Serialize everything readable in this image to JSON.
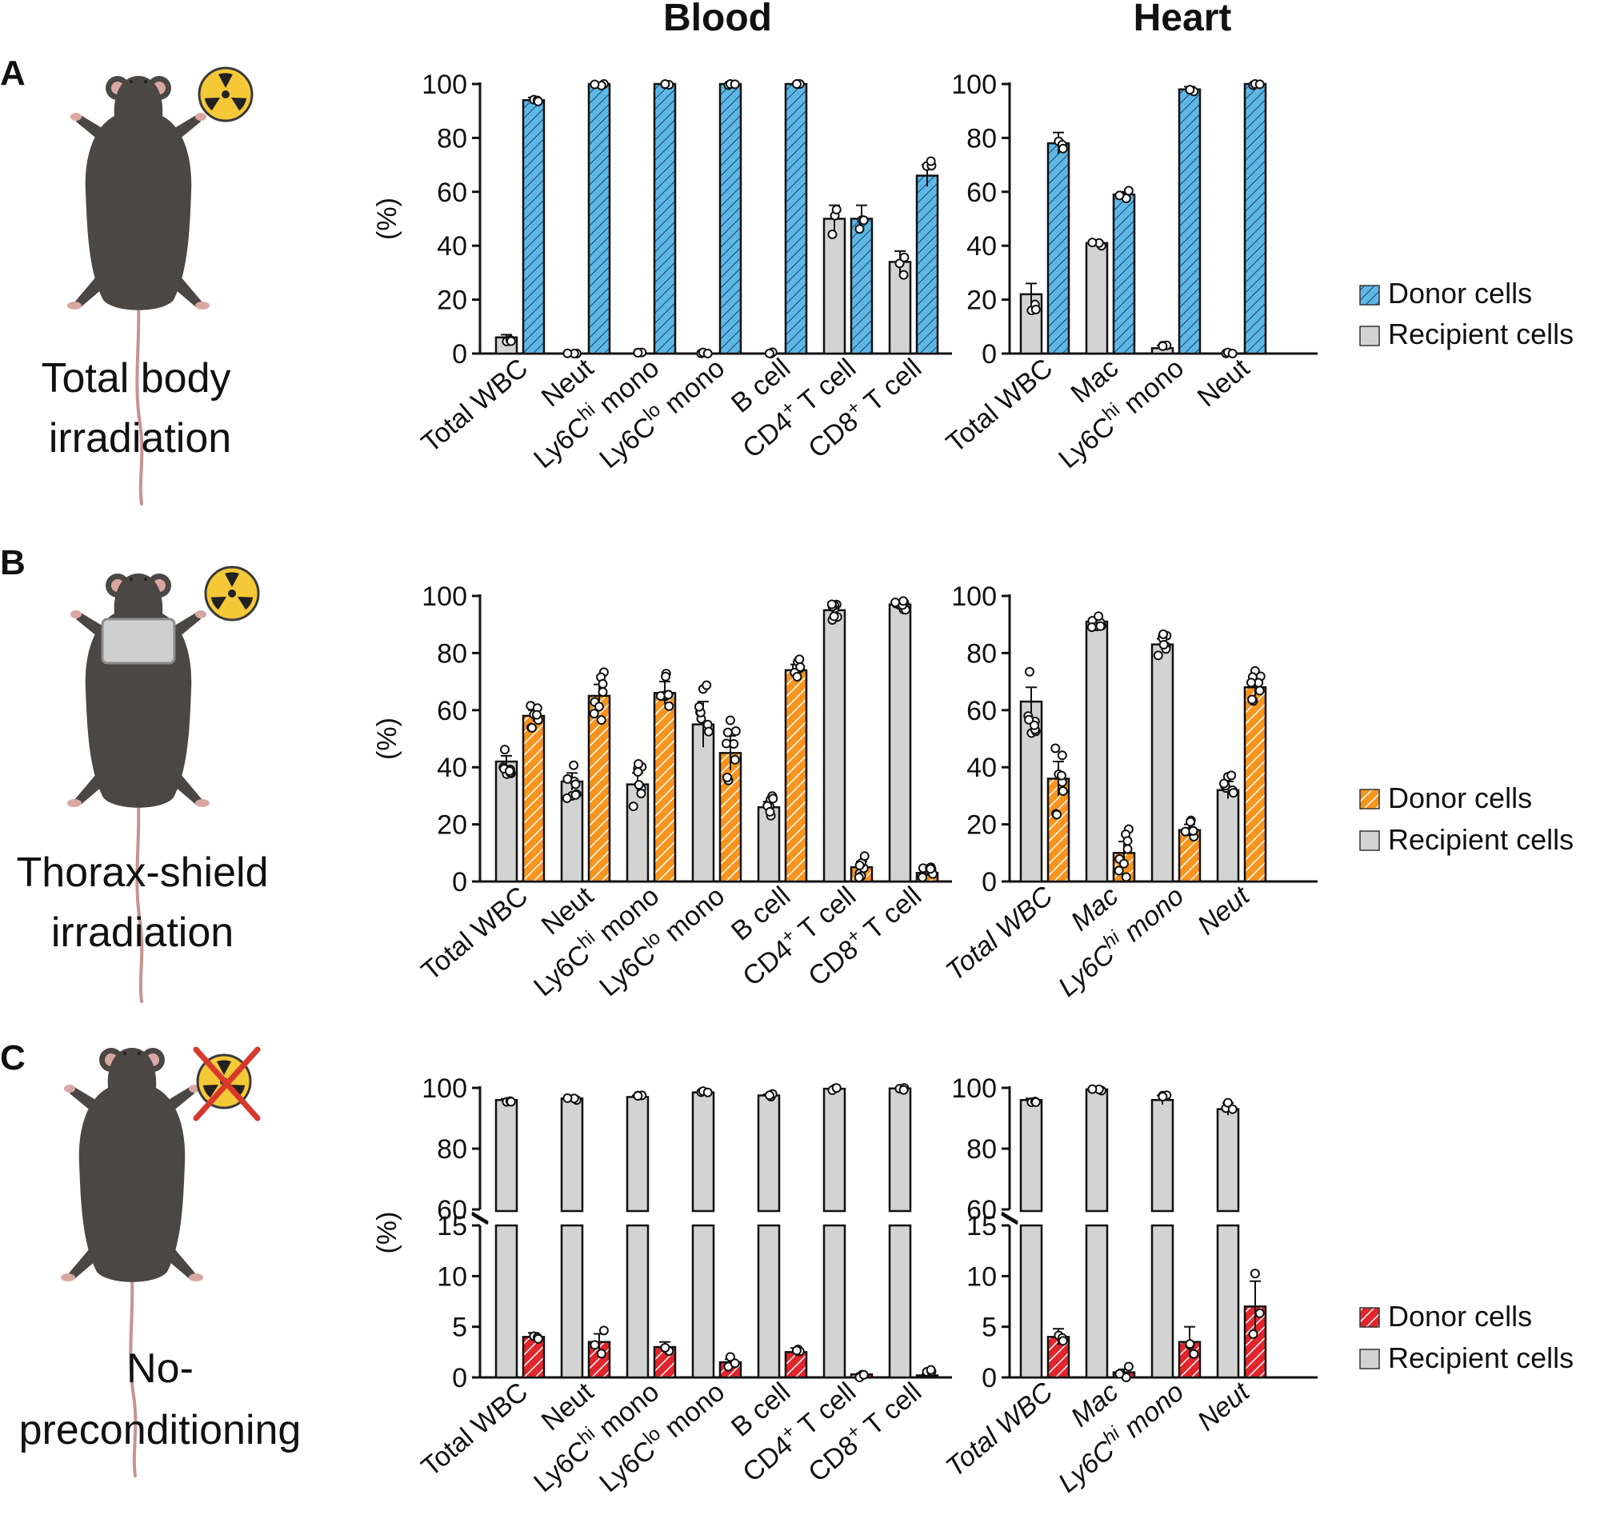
{
  "column_titles": {
    "blood": "Blood",
    "heart": "Heart"
  },
  "colors": {
    "donor_blue": "#5fb7e6",
    "donor_orange": "#f7941d",
    "donor_red": "#e0252c",
    "recipient_gray": "#d3d3d3",
    "axis": "#111111",
    "radiation_yellow": "#f5c838",
    "cross_red": "#d9382c"
  },
  "panels": [
    {
      "letter": "A",
      "caption_lines": [
        "Total body",
        "irradiation"
      ],
      "icon": "radiation-icon",
      "shielded": false,
      "legend": {
        "donor": "Donor cells",
        "recipient": "Recipient cells",
        "donor_color_key": "donor_blue"
      }
    },
    {
      "letter": "B",
      "caption_lines": [
        "Thorax-shield",
        "irradiation"
      ],
      "icon": "radiation-icon",
      "shielded": true,
      "legend": {
        "donor": "Donor cells",
        "recipient": "Recipient cells",
        "donor_color_key": "donor_orange"
      }
    },
    {
      "letter": "C",
      "caption_lines": [
        "No-",
        "preconditioning"
      ],
      "icon": "radiation-crossed-icon",
      "shielded": false,
      "legend": {
        "donor": "Donor cells",
        "recipient": "Recipient cells",
        "donor_color_key": "donor_red"
      }
    }
  ],
  "chart_data": [
    {
      "id": "A-blood",
      "panel": "A",
      "title": "Blood",
      "type": "bar",
      "ylabel": "(%)",
      "ylim": [
        0,
        100
      ],
      "yticks": [
        0,
        20,
        40,
        60,
        80,
        100
      ],
      "categories": [
        "Total WBC",
        "Neut",
        "Ly6Chi mono",
        "Ly6Clo mono",
        "B cell",
        "CD4+ T cell",
        "CD8+ T cell"
      ],
      "series": [
        {
          "name": "Recipient cells",
          "values": [
            6,
            0,
            0,
            0,
            0,
            50,
            34
          ],
          "errors": [
            1,
            0,
            0,
            0,
            0,
            5,
            4
          ]
        },
        {
          "name": "Donor cells",
          "values": [
            94,
            100,
            100,
            100,
            100,
            50,
            66
          ],
          "errors": [
            1,
            0,
            0,
            0,
            0,
            5,
            4
          ]
        }
      ]
    },
    {
      "id": "A-heart",
      "panel": "A",
      "title": "Heart",
      "type": "bar",
      "ylabel": "",
      "ylim": [
        0,
        100
      ],
      "yticks": [
        0,
        20,
        40,
        60,
        80,
        100
      ],
      "categories": [
        "Total WBC",
        "Mac",
        "Ly6Chi mono",
        "Neut"
      ],
      "series": [
        {
          "name": "Recipient cells",
          "values": [
            22,
            41,
            2,
            0
          ],
          "errors": [
            4,
            1,
            1,
            0
          ]
        },
        {
          "name": "Donor cells",
          "values": [
            78,
            59,
            98,
            100
          ],
          "errors": [
            4,
            1,
            1,
            0
          ]
        }
      ]
    },
    {
      "id": "B-blood",
      "panel": "B",
      "type": "bar",
      "ylabel": "(%)",
      "ylim": [
        0,
        100
      ],
      "yticks": [
        0,
        20,
        40,
        60,
        80,
        100
      ],
      "categories": [
        "Total WBC",
        "Neut",
        "Ly6Chi mono",
        "Ly6Clo mono",
        "B cell",
        "CD4+ T cell",
        "CD8+ T cell"
      ],
      "series": [
        {
          "name": "Recipient cells",
          "values": [
            42,
            35,
            34,
            55,
            26,
            95,
            97
          ],
          "errors": [
            2,
            3,
            4,
            8,
            2,
            2,
            1
          ]
        },
        {
          "name": "Donor cells",
          "values": [
            58,
            65,
            66,
            45,
            74,
            5,
            3
          ],
          "errors": [
            2,
            4,
            4,
            6,
            2,
            2,
            1
          ]
        }
      ]
    },
    {
      "id": "B-heart",
      "panel": "B",
      "type": "bar",
      "ylabel": "",
      "ylim": [
        0,
        100
      ],
      "yticks": [
        0,
        20,
        40,
        60,
        80,
        100
      ],
      "categories": [
        "Total WBC",
        "Mac",
        "Ly6Chi mono",
        "Neut"
      ],
      "series": [
        {
          "name": "Recipient cells",
          "values": [
            63,
            91,
            83,
            32
          ],
          "errors": [
            5,
            1,
            2,
            3
          ]
        },
        {
          "name": "Donor cells",
          "values": [
            36,
            10,
            18,
            68
          ],
          "errors": [
            6,
            4,
            2,
            3
          ]
        }
      ]
    },
    {
      "id": "C-blood",
      "panel": "C",
      "type": "bar",
      "ylabel": "(%)",
      "broken_axis": {
        "lower": [
          0,
          15
        ],
        "upper": [
          60,
          100
        ]
      },
      "yticks": [
        0,
        5,
        10,
        15,
        60,
        80,
        100
      ],
      "categories": [
        "Total WBC",
        "Neut",
        "Ly6Chi mono",
        "Ly6Clo mono",
        "B cell",
        "CD4+ T cell",
        "CD8+ T cell"
      ],
      "series": [
        {
          "name": "Recipient cells",
          "values": [
            96,
            96.5,
            97,
            98.5,
            97.5,
            99.7,
            99.8
          ],
          "errors": [
            0.4,
            0.5,
            0.5,
            0.3,
            0.4,
            0.1,
            0.1
          ]
        },
        {
          "name": "Donor cells",
          "values": [
            4,
            3.5,
            3,
            1.5,
            2.5,
            0.3,
            0.2
          ],
          "errors": [
            0.4,
            0.8,
            0.5,
            0.3,
            0.4,
            0.1,
            0.1
          ]
        }
      ]
    },
    {
      "id": "C-heart",
      "panel": "C",
      "type": "bar",
      "ylabel": "",
      "broken_axis": {
        "lower": [
          0,
          15
        ],
        "upper": [
          60,
          100
        ]
      },
      "yticks": [
        0,
        5,
        10,
        15,
        60,
        80,
        100
      ],
      "categories": [
        "Total WBC",
        "Mac",
        "Ly6Chi mono",
        "Neut"
      ],
      "series": [
        {
          "name": "Recipient cells",
          "values": [
            96,
            99.5,
            96,
            93
          ],
          "errors": [
            0.5,
            0.3,
            1.5,
            2
          ]
        },
        {
          "name": "Donor cells",
          "values": [
            4,
            0.5,
            3.5,
            7
          ],
          "errors": [
            0.8,
            0.3,
            1.5,
            2.5
          ]
        }
      ]
    }
  ]
}
